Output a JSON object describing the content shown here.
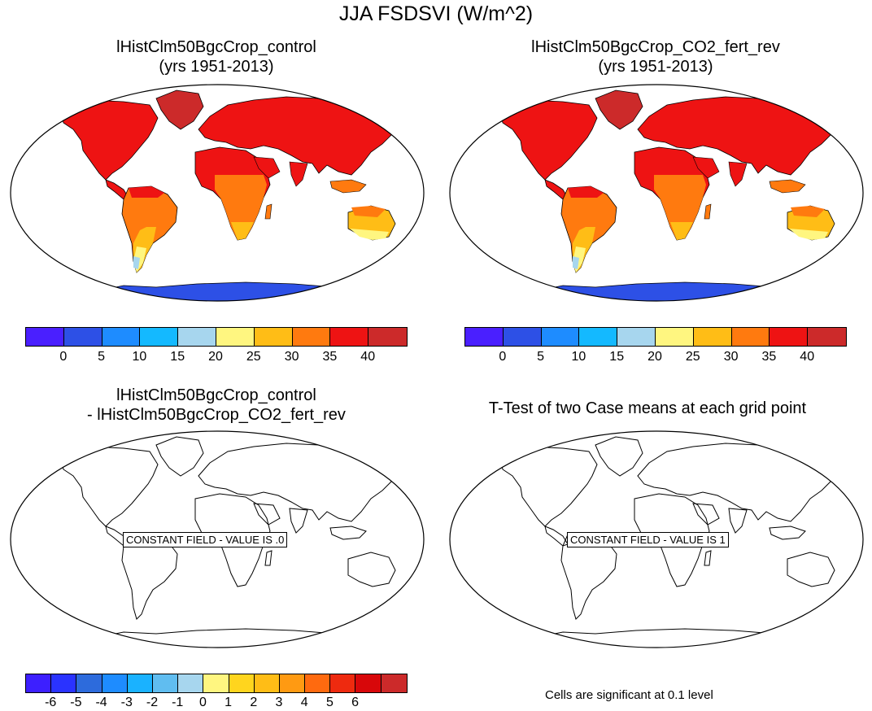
{
  "title": "JJA FSDSVI (W/m^2)",
  "panels": [
    {
      "title_line1": "lHistClm50BgcCrop_control",
      "title_line2": "(yrs 1951-2013)"
    },
    {
      "title_line1": "lHistClm50BgcCrop_CO2_fert_rev",
      "title_line2": "(yrs 1951-2013)"
    },
    {
      "title_line1": "lHistClm50BgcCrop_control",
      "title_line2": "- lHistClm50BgcCrop_CO2_fert_rev",
      "label": "CONSTANT FIELD - VALUE IS .0"
    },
    {
      "title_line1": "T-Test of two Case means at each grid point",
      "title_line2": "",
      "label": "CONSTANT FIELD - VALUE IS 1"
    }
  ],
  "colorbar_main": {
    "colors": [
      "#4a1fff",
      "#2d50e6",
      "#1e8cff",
      "#14b9ff",
      "#a7d6ee",
      "#fff680",
      "#ffbd16",
      "#ff7a0f",
      "#ee1313",
      "#cc2a2a"
    ],
    "ticks": [
      "0",
      "5",
      "10",
      "15",
      "20",
      "25",
      "30",
      "35",
      "40"
    ]
  },
  "colorbar_diff": {
    "colors": [
      "#3d1fff",
      "#2a33ff",
      "#2d6bdc",
      "#1e8cff",
      "#1ab2ff",
      "#60bdf0",
      "#a7d6ee",
      "#fff680",
      "#ffd51e",
      "#ffbd16",
      "#ff9a12",
      "#ff6a0f",
      "#ee2a0f",
      "#d8070a",
      "#cc2a2a"
    ],
    "ticks": [
      "-6",
      "-5",
      "-4",
      "-3",
      "-2",
      "-1",
      "0",
      "1",
      "2",
      "3",
      "4",
      "5",
      "6"
    ]
  },
  "footnote": "Cells are significant at 0.1 level"
}
